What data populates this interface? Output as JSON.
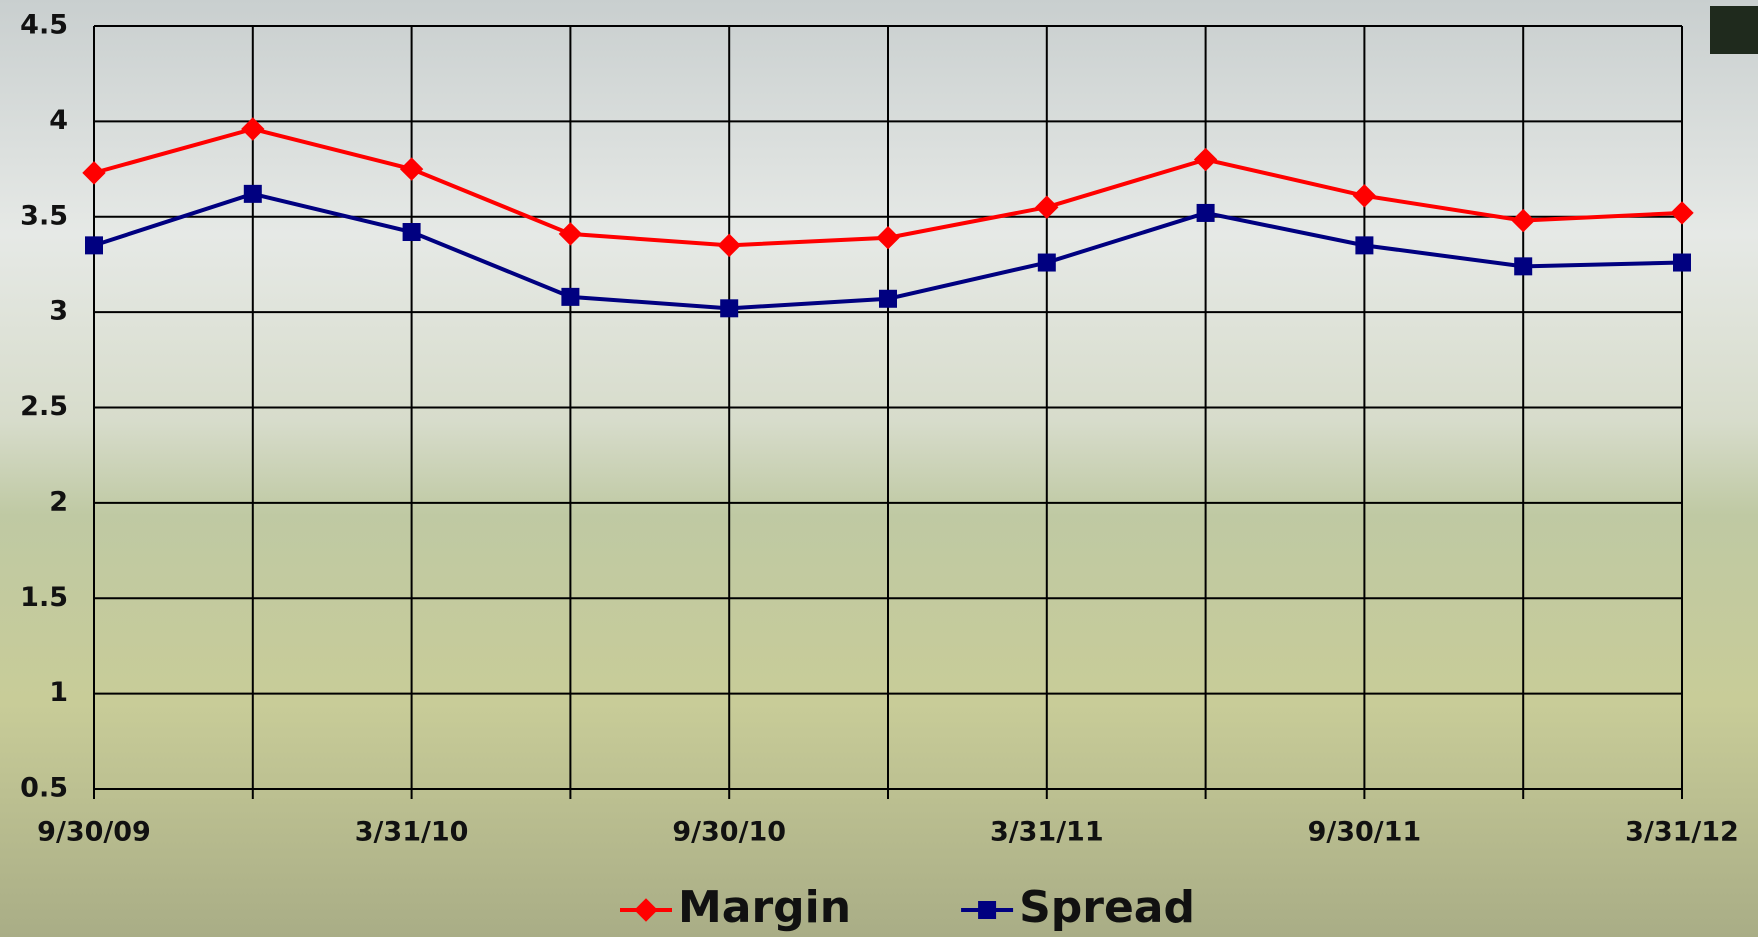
{
  "chart_data": {
    "type": "line",
    "categories": [
      "9/30/09",
      null,
      "3/31/10",
      null,
      "9/30/10",
      null,
      "3/31/11",
      null,
      "9/30/11",
      null,
      "3/31/12"
    ],
    "series": [
      {
        "name": "Margin",
        "color": "#ff0000",
        "marker": "diamond",
        "values": [
          3.73,
          3.96,
          3.75,
          3.41,
          3.35,
          3.39,
          3.55,
          3.8,
          3.61,
          3.48,
          3.52
        ]
      },
      {
        "name": "Spread",
        "color": "#000080",
        "marker": "square",
        "values": [
          3.35,
          3.62,
          3.42,
          3.08,
          3.02,
          3.07,
          3.26,
          3.52,
          3.35,
          3.24,
          3.26
        ]
      }
    ],
    "ylim": [
      0.5,
      4.5
    ],
    "yticks": [
      0.5,
      1,
      1.5,
      2,
      2.5,
      3,
      3.5,
      4,
      4.5
    ],
    "grid": true,
    "legend": "bottom"
  }
}
